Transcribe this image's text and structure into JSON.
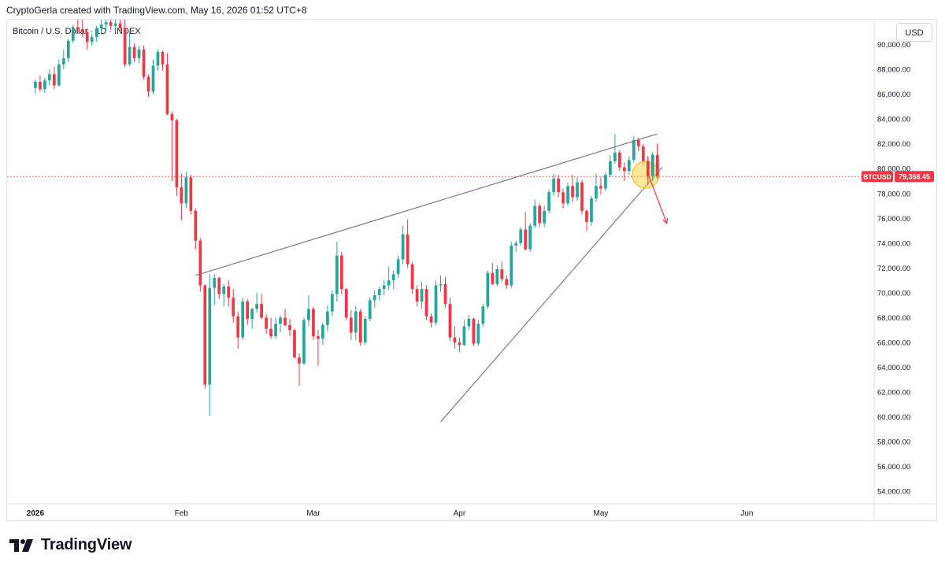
{
  "header": {
    "credit": "CryptoGerla created with TradingView.com, May 16, 2026 01:52 UTC+8"
  },
  "symbol": {
    "title": "Bitcoin / U.S. Dollar · 1D · INDEX"
  },
  "currency_button": "USD",
  "price_tag": {
    "label": "BTCUSD",
    "value": "79,368.45",
    "price": 79368.45
  },
  "brand": {
    "name": "TradingView"
  },
  "colors": {
    "up": "#26a69a",
    "down": "#f23645",
    "line": "#787b86",
    "highlight": "#f5d442",
    "arrow": "#f23645"
  },
  "chart_data": {
    "type": "candlestick",
    "y_ticks": [
      "54,000.00",
      "56,000.00",
      "58,000.00",
      "60,000.00",
      "62,000.00",
      "64,000.00",
      "66,000.00",
      "68,000.00",
      "70,000.00",
      "72,000.00",
      "74,000.00",
      "76,000.00",
      "78,000.00",
      "80,000.00",
      "82,000.00",
      "84,000.00",
      "86,000.00",
      "88,000.00",
      "90,000.00"
    ],
    "x_ticks": [
      {
        "label": "2026",
        "day": 0
      },
      {
        "label": "Feb",
        "day": 31
      },
      {
        "label": "Mar",
        "day": 59
      },
      {
        "label": "Apr",
        "day": 90
      },
      {
        "label": "May",
        "day": 120
      },
      {
        "label": "Jun",
        "day": 151
      }
    ],
    "ylim": [
      53000,
      92000
    ],
    "xlim": [
      -6,
      178
    ],
    "candles": [
      [
        86500,
        87200,
        86000,
        87000
      ],
      [
        87000,
        87500,
        86200,
        86400
      ],
      [
        86400,
        87300,
        86100,
        87100
      ],
      [
        87100,
        88000,
        86700,
        87600
      ],
      [
        87600,
        88200,
        86400,
        86700
      ],
      [
        86700,
        88800,
        86600,
        88400
      ],
      [
        88400,
        89600,
        88000,
        88900
      ],
      [
        88900,
        90500,
        88600,
        90300
      ],
      [
        90300,
        91600,
        90100,
        91400
      ],
      [
        91400,
        92000,
        90900,
        91200
      ],
      [
        91200,
        92000,
        90600,
        91000
      ],
      [
        91000,
        91300,
        89600,
        90200
      ],
      [
        90200,
        90900,
        89900,
        90600
      ],
      [
        90600,
        91500,
        90200,
        91300
      ],
      [
        91300,
        92000,
        90900,
        91600
      ],
      [
        91600,
        92000,
        91100,
        91800
      ],
      [
        91800,
        92000,
        91200,
        91500
      ],
      [
        91500,
        92000,
        91000,
        91700
      ],
      [
        91700,
        92000,
        91000,
        91300
      ],
      [
        91300,
        92000,
        88200,
        88400
      ],
      [
        88400,
        91000,
        88300,
        89800
      ],
      [
        89800,
        90100,
        88600,
        88900
      ],
      [
        88900,
        89900,
        88500,
        89600
      ],
      [
        89600,
        89900,
        87200,
        87400
      ],
      [
        87400,
        87600,
        85800,
        86200
      ],
      [
        86200,
        88800,
        86000,
        88300
      ],
      [
        88300,
        89600,
        87900,
        89400
      ],
      [
        89400,
        89500,
        87900,
        88400
      ],
      [
        88400,
        89300,
        84300,
        84400
      ],
      [
        84400,
        84600,
        79000,
        83900
      ],
      [
        83900,
        84000,
        77800,
        78500
      ],
      [
        78500,
        79600,
        75800,
        77200
      ],
      [
        77200,
        79800,
        76800,
        79300
      ],
      [
        79300,
        79500,
        76300,
        76600
      ],
      [
        76600,
        76800,
        73500,
        74200
      ],
      [
        74200,
        74400,
        70100,
        70600
      ],
      [
        70600,
        70700,
        62300,
        62600
      ],
      [
        62600,
        71500,
        60100,
        70400
      ],
      [
        70400,
        71500,
        69000,
        71200
      ],
      [
        71200,
        71300,
        69500,
        69900
      ],
      [
        69900,
        70700,
        68900,
        70500
      ],
      [
        70500,
        71000,
        68900,
        69600
      ],
      [
        69600,
        70300,
        67600,
        68100
      ],
      [
        68100,
        68500,
        65500,
        66400
      ],
      [
        66400,
        69600,
        66200,
        69300
      ],
      [
        69300,
        69500,
        67400,
        67900
      ],
      [
        67900,
        68800,
        67100,
        68700
      ],
      [
        68700,
        70000,
        68400,
        69100
      ],
      [
        69100,
        69900,
        67900,
        68000
      ],
      [
        68000,
        68300,
        66700,
        67100
      ],
      [
        67100,
        68000,
        66300,
        66500
      ],
      [
        66500,
        68000,
        66300,
        67500
      ],
      [
        67500,
        68200,
        66800,
        68000
      ],
      [
        68000,
        68700,
        67300,
        67400
      ],
      [
        67400,
        67900,
        66500,
        67000
      ],
      [
        67000,
        67100,
        64700,
        64800
      ],
      [
        64800,
        65100,
        62500,
        64300
      ],
      [
        64300,
        68000,
        64200,
        67800
      ],
      [
        67800,
        69800,
        67300,
        68700
      ],
      [
        68700,
        68900,
        66200,
        66500
      ],
      [
        66500,
        67000,
        64100,
        66300
      ],
      [
        66300,
        67600,
        65800,
        67400
      ],
      [
        67400,
        69000,
        66900,
        68500
      ],
      [
        68500,
        70200,
        68100,
        69900
      ],
      [
        69900,
        74100,
        69300,
        73000
      ],
      [
        73000,
        73300,
        69900,
        70300
      ],
      [
        70300,
        70400,
        67800,
        68000
      ],
      [
        68000,
        68600,
        66200,
        66800
      ],
      [
        66800,
        68900,
        66200,
        68500
      ],
      [
        68500,
        68700,
        65700,
        66000
      ],
      [
        66000,
        68100,
        65800,
        67900
      ],
      [
        67900,
        69600,
        67700,
        69400
      ],
      [
        69400,
        70200,
        68800,
        69800
      ],
      [
        69800,
        70500,
        69400,
        70300
      ],
      [
        70300,
        71000,
        69800,
        70600
      ],
      [
        70600,
        72100,
        70200,
        71000
      ],
      [
        71000,
        71800,
        70300,
        71500
      ],
      [
        71500,
        73000,
        71200,
        72700
      ],
      [
        72700,
        75400,
        72300,
        74700
      ],
      [
        74700,
        75900,
        72000,
        72300
      ],
      [
        72300,
        72500,
        69900,
        70300
      ],
      [
        70300,
        70600,
        68900,
        69300
      ],
      [
        69300,
        70900,
        68700,
        70300
      ],
      [
        70300,
        70600,
        67800,
        68100
      ],
      [
        68100,
        68300,
        67200,
        67600
      ],
      [
        67600,
        71000,
        67400,
        70600
      ],
      [
        70600,
        71400,
        70100,
        70700
      ],
      [
        70700,
        71300,
        68800,
        69100
      ],
      [
        69100,
        69600,
        66100,
        66400
      ],
      [
        66400,
        67300,
        65500,
        66000
      ],
      [
        66000,
        66400,
        65200,
        65800
      ],
      [
        65800,
        67800,
        65700,
        67300
      ],
      [
        67300,
        68200,
        67000,
        67900
      ],
      [
        67900,
        68000,
        65700,
        65900
      ],
      [
        65900,
        67800,
        65700,
        67500
      ],
      [
        67500,
        69100,
        67300,
        68900
      ],
      [
        68900,
        71800,
        68700,
        71600
      ],
      [
        71600,
        72400,
        70600,
        70700
      ],
      [
        70700,
        72200,
        70500,
        71900
      ],
      [
        71900,
        72500,
        70900,
        71100
      ],
      [
        71100,
        71400,
        70300,
        70600
      ],
      [
        70600,
        74100,
        70400,
        73800
      ],
      [
        73800,
        74200,
        73300,
        74000
      ],
      [
        74000,
        75300,
        73800,
        75100
      ],
      [
        75100,
        76500,
        73400,
        73500
      ],
      [
        73500,
        75600,
        73300,
        75400
      ],
      [
        75400,
        77500,
        75200,
        77000
      ],
      [
        77000,
        77200,
        75300,
        75600
      ],
      [
        75600,
        77000,
        75300,
        76600
      ],
      [
        76600,
        78300,
        76400,
        78100
      ],
      [
        78100,
        79600,
        77800,
        79200
      ],
      [
        79200,
        79500,
        77700,
        78100
      ],
      [
        78100,
        78400,
        76800,
        77200
      ],
      [
        77200,
        78900,
        77000,
        78600
      ],
      [
        78600,
        79500,
        77300,
        77700
      ],
      [
        77700,
        79300,
        77400,
        78900
      ],
      [
        78900,
        79100,
        76300,
        76600
      ],
      [
        76600,
        76700,
        75000,
        75700
      ],
      [
        75700,
        77800,
        75400,
        77600
      ],
      [
        77600,
        79600,
        77300,
        78600
      ],
      [
        78600,
        79300,
        77900,
        78400
      ],
      [
        78400,
        79700,
        78200,
        79500
      ],
      [
        79500,
        81100,
        79300,
        80600
      ],
      [
        80600,
        82800,
        80400,
        81300
      ],
      [
        81300,
        81500,
        79800,
        80100
      ],
      [
        80100,
        80500,
        79000,
        79800
      ],
      [
        79800,
        81000,
        79500,
        80700
      ],
      [
        80700,
        82600,
        80500,
        82300
      ],
      [
        82300,
        82500,
        81400,
        81800
      ],
      [
        81800,
        82000,
        80300,
        80600
      ],
      [
        80600,
        81000,
        78700,
        79400
      ],
      [
        79400,
        81300,
        79000,
        81100
      ],
      [
        81100,
        82000,
        79200,
        79400
      ]
    ],
    "trendlines": {
      "upper": [
        [
          34,
          71400
        ],
        [
          132,
          82800
        ]
      ],
      "lower": [
        [
          86,
          59600
        ],
        [
          133,
          80100
        ]
      ]
    },
    "highlight": {
      "day": 129.5,
      "price": 79500
    },
    "arrow": {
      "from": [
        130,
        79600
      ],
      "to": [
        134,
        75600
      ]
    }
  }
}
